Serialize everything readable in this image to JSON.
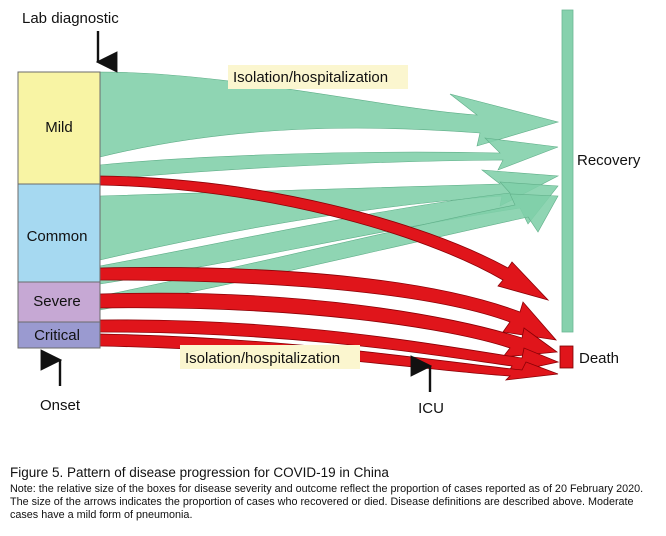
{
  "labels": {
    "lab_diagnostic": "Lab diagnostic",
    "onset": "Onset",
    "icu": "ICU",
    "recovery": "Recovery",
    "death": "Death",
    "isolation_top": "Isolation/hospitalization",
    "isolation_bottom": "Isolation/hospitalization"
  },
  "severity_boxes": [
    {
      "label": "Mild",
      "color": "#f8f4a4"
    },
    {
      "label": "Common",
      "color": "#a6d9f1"
    },
    {
      "label": "Severe",
      "color": "#c6a8d4"
    },
    {
      "label": "Critical",
      "color": "#9a9ad0"
    }
  ],
  "colors": {
    "recovery_flow": "#7fcfa8",
    "recovery_bar": "#86d1ad",
    "death_flow": "#e0151b",
    "death_box": "#e0151b",
    "label_highlight": "#fbf6cf"
  },
  "caption": {
    "title": "Figure 5. Pattern of disease progression  for COVID-19 in China",
    "note": "Note: the relative size of the boxes for disease severity and outcome reflect the proportion of cases reported as of 20 February 2020. The size of the arrows indicates the proportion of cases who recovered or died. Disease definitions are described above. Moderate cases have a mild form of pneumonia."
  }
}
